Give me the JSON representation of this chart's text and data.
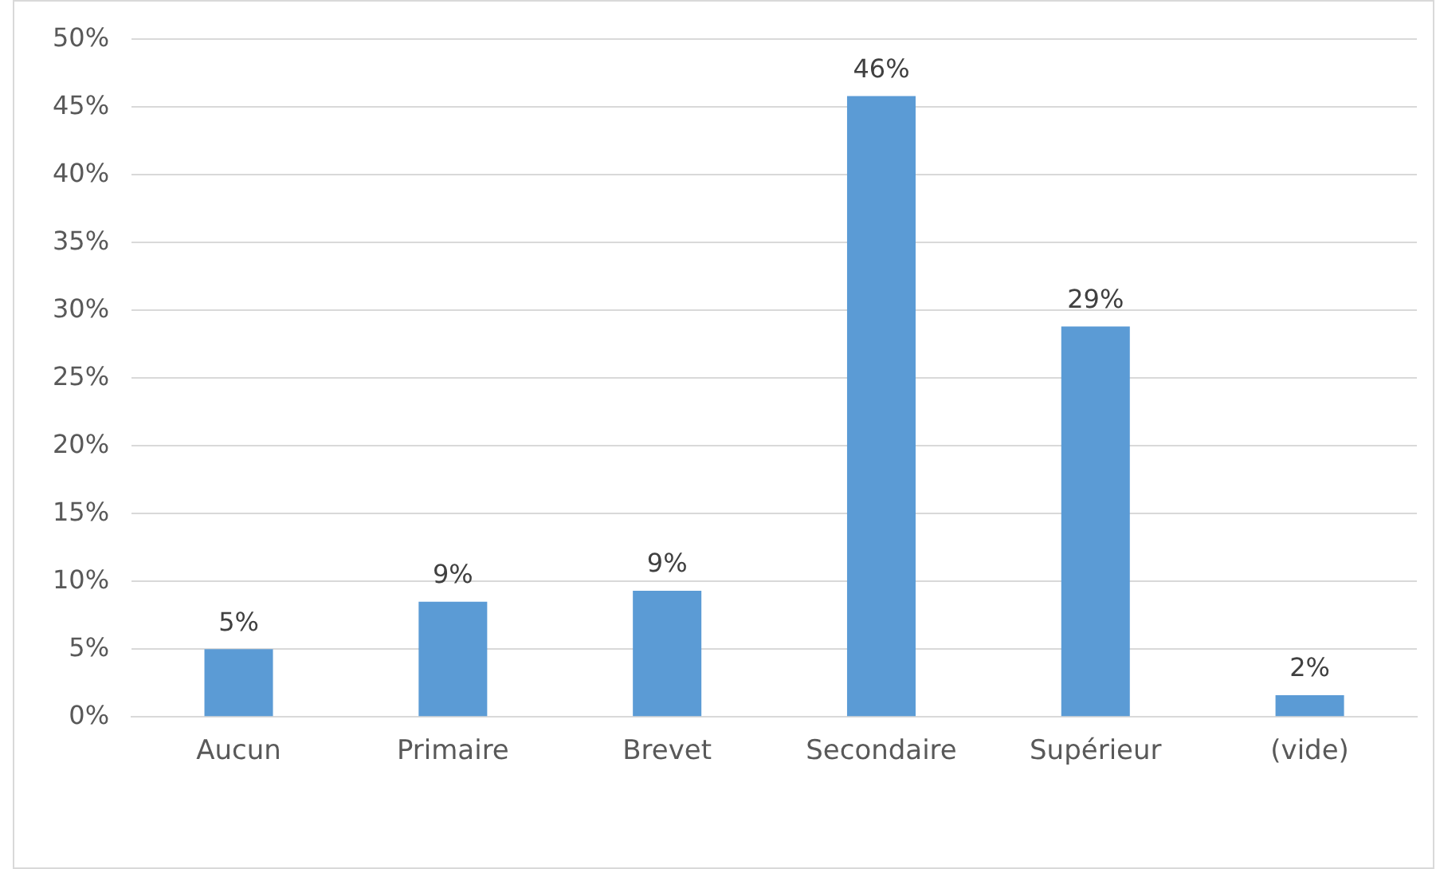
{
  "chart_data": {
    "type": "bar",
    "categories": [
      "Aucun",
      "Primaire",
      "Brevet",
      "Secondaire",
      "Supérieur",
      "(vide)"
    ],
    "values": [
      5.0,
      8.5,
      9.3,
      45.8,
      28.8,
      1.6
    ],
    "value_labels": [
      "5%",
      "9%",
      "9%",
      "46%",
      "29%",
      "2%"
    ],
    "color": "#5b9bd5",
    "ylim": [
      0,
      50
    ],
    "yticks": [
      {
        "value": 0,
        "label": "0%"
      },
      {
        "value": 5,
        "label": "5%"
      },
      {
        "value": 10,
        "label": "10%"
      },
      {
        "value": 15,
        "label": "15%"
      },
      {
        "value": 20,
        "label": "20%"
      },
      {
        "value": 25,
        "label": "25%"
      },
      {
        "value": 30,
        "label": "30%"
      },
      {
        "value": 35,
        "label": "35%"
      },
      {
        "value": 40,
        "label": "40%"
      },
      {
        "value": 45,
        "label": "45%"
      },
      {
        "value": 50,
        "label": "50%"
      }
    ],
    "grid": "y",
    "legend": false
  }
}
